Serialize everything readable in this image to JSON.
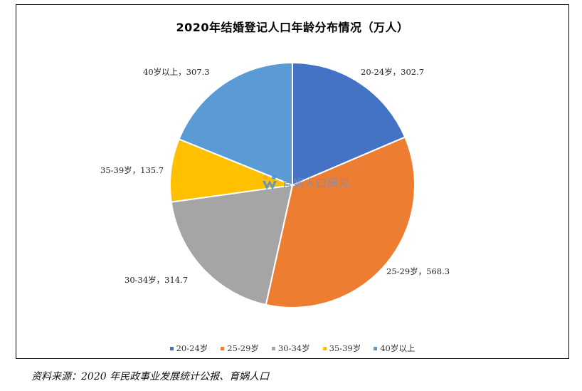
{
  "chart_data": {
    "type": "pie",
    "title": "2020年结婚登记人口年龄分布情况（万人）",
    "categories": [
      "20-24岁",
      "25-29岁",
      "30-34岁",
      "35-39岁",
      "40岁以上"
    ],
    "values": [
      302.7,
      568.3,
      314.7,
      135.7,
      307.3
    ],
    "data_labels": [
      "20-24岁，302.7",
      "25-29岁，568.3",
      "30-34岁，314.7",
      "35-39岁，135.7",
      "40岁以上，307.3"
    ],
    "colors": [
      "#4472c4",
      "#ed7d31",
      "#a5a5a5",
      "#ffc000",
      "#5b9bd5"
    ],
    "legend_position": "bottom",
    "start_angle": "12 o'clock",
    "direction": "clockwise"
  },
  "watermark": {
    "text": "育娲人口研究",
    "icon": "yuwa-logo-icon"
  },
  "source": "资料来源：2020 年民政事业发展统计公报、育娲人口"
}
